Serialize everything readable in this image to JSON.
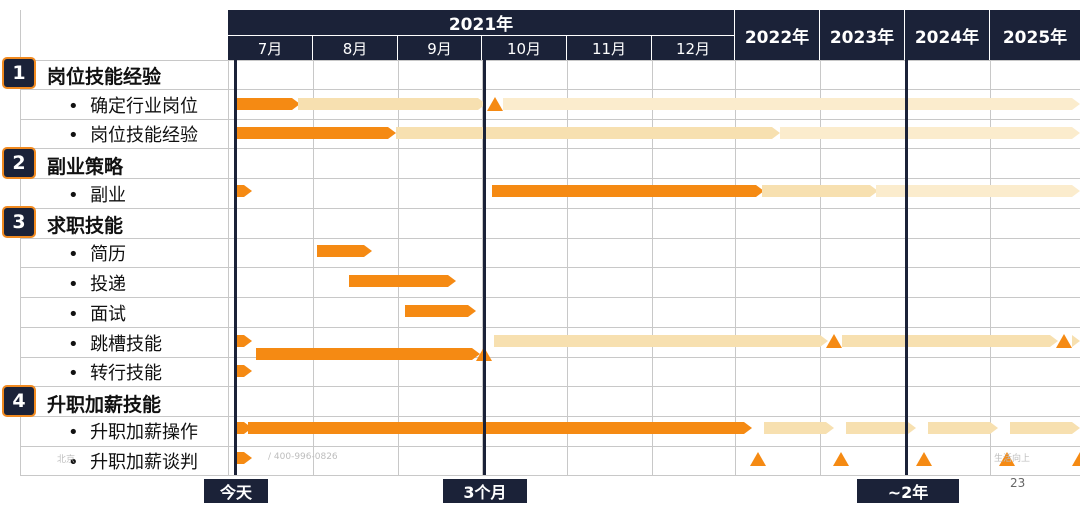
{
  "colors": {
    "navy": "#1b2238",
    "orange": "#f58a13",
    "beige": "#f7e0b0",
    "beige_light": "#fbeccd"
  },
  "header": {
    "year_2021": "2021年",
    "months": [
      "7月",
      "8月",
      "9月",
      "10月",
      "11月",
      "12月"
    ],
    "years": [
      "2022年",
      "2023年",
      "2024年",
      "2025年"
    ]
  },
  "sections": [
    {
      "num": "1",
      "title": "岗位技能经验"
    },
    {
      "num": "2",
      "title": "副业策略"
    },
    {
      "num": "3",
      "title": "求职技能"
    },
    {
      "num": "4",
      "title": "升职加薪技能"
    }
  ],
  "items": [
    "确定行业岗位",
    "岗位技能经验",
    "副业",
    "简历",
    "投递",
    "面试",
    "跳槽技能",
    "转行技能",
    "升职加薪操作",
    "升职加薪谈判"
  ],
  "milestones": [
    "今天",
    "3个月",
    "~2年"
  ],
  "watermark_left": "北京",
  "watermark_mid": "/ 400-996-0826",
  "watermark_right": "生活向上",
  "page_number": "23"
}
